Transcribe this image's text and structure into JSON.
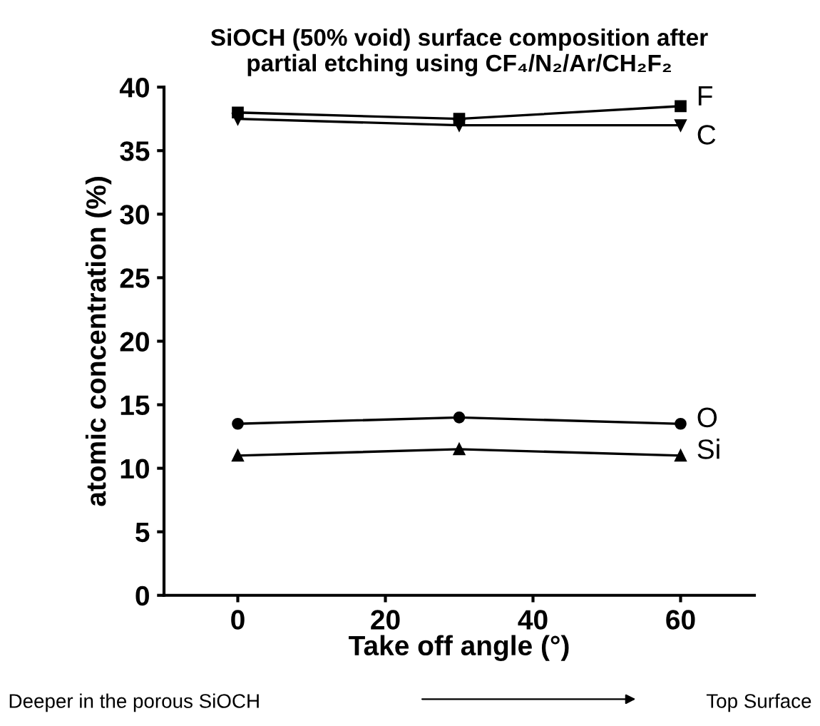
{
  "chart_data": {
    "type": "line",
    "title": "SiOCH (50% void) surface composition after\npartial etching using CF₄/N₂/Ar/CH₂F₂",
    "xlabel": "Take off angle (°)",
    "ylabel": "atomic concentration (%)",
    "x": [
      0,
      30,
      60
    ],
    "series": [
      {
        "name": "F",
        "color": "#000000",
        "marker": "square",
        "values": [
          38,
          37.5,
          38.5
        ]
      },
      {
        "name": "C",
        "color": "#000000",
        "marker": "triangle_down",
        "values": [
          37.5,
          37,
          37
        ]
      },
      {
        "name": "O",
        "color": "#000000",
        "marker": "circle",
        "values": [
          13.5,
          14,
          13.5
        ]
      },
      {
        "name": "Si",
        "color": "#000000",
        "marker": "triangle",
        "values": [
          11,
          11.5,
          11
        ]
      }
    ],
    "xlim": [
      -10,
      70
    ],
    "xticks": [
      0,
      20,
      40,
      60
    ],
    "ylim": [
      0,
      40
    ],
    "yticks": [
      0,
      5,
      10,
      15,
      20,
      25,
      30,
      35,
      40
    ],
    "grid": false,
    "legend": false,
    "line_style": "solid",
    "annotations": [
      "Deeper in the porous SiOCH",
      "Top Surface"
    ]
  }
}
